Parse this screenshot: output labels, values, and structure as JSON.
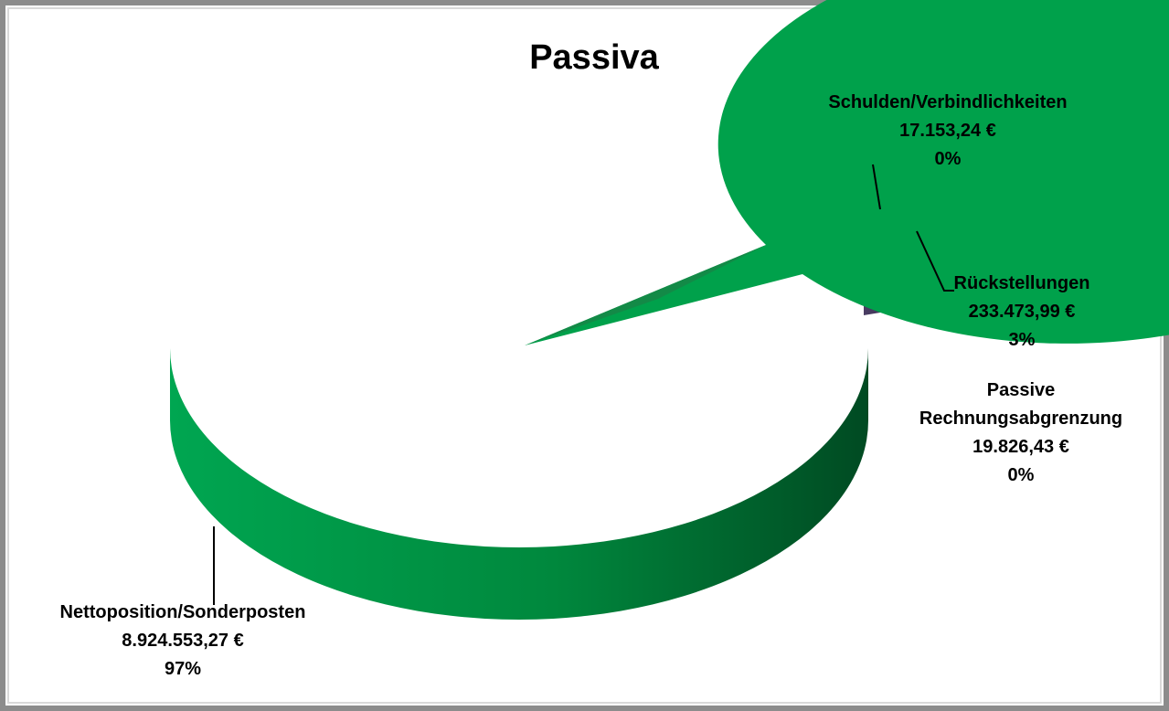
{
  "chart_data": {
    "type": "pie",
    "title": "Passiva",
    "slices": [
      {
        "label": "Nettoposition/Sonderposten",
        "value": 8924553.27,
        "value_text": "8.924.553,27 €",
        "percent_text": "97%",
        "color": "#00A14B"
      },
      {
        "label": "Schulden/Verbindlichkeiten",
        "value": 17153.24,
        "value_text": "17.153,24 €",
        "percent_text": "0%",
        "color": "#C00000"
      },
      {
        "label": "Rückstellungen",
        "value": 233473.99,
        "value_text": "233.473,99 €",
        "percent_text": "3%",
        "color": "#9BBB59"
      },
      {
        "label": "Passive Rechnungsabgrenzung",
        "label_lines": [
          "Passive",
          "Rechnungsabgrenzung"
        ],
        "value": 19826.43,
        "value_text": "19.826,43 €",
        "percent_text": "0%",
        "color": "#3F3151"
      }
    ],
    "legend": "none",
    "style": "3d-exploded"
  }
}
